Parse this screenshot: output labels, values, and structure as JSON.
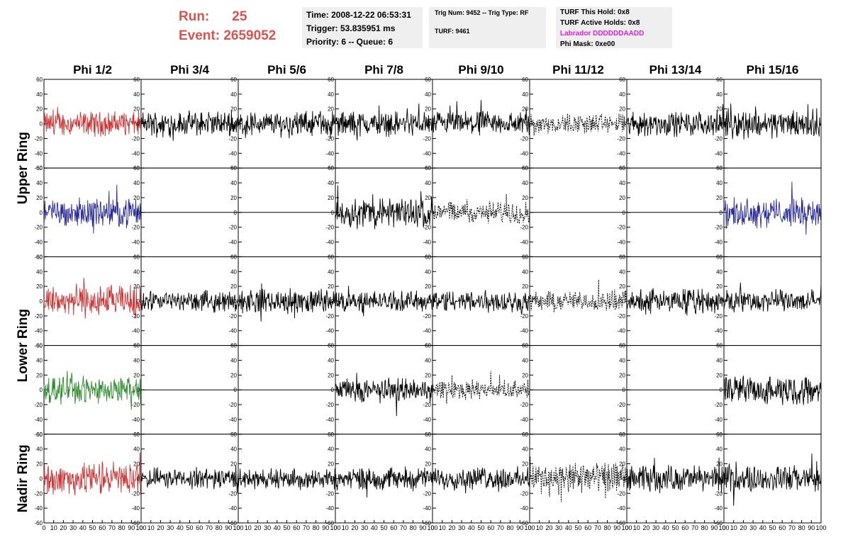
{
  "header": {
    "run_label": "Run:",
    "run_value": "25",
    "event_label": "Event:",
    "event_value": "2659052",
    "time": "Time: 2008-12-22 06:53:31",
    "trigger": "Trigger: 53.835951 ms",
    "priority": "Priority: 6 -- Queue: 6",
    "trig_num": "Trig Num: 9452 -- Trig Type: RF",
    "turf": "TURF: 9461",
    "turf_this_hold": "TURF This Hold: 0x8",
    "turf_active_holds": "TURF Active Holds: 0x8",
    "labrador": "Labrador DDDDDDAADD",
    "phi_mask": "Phi Mask: 0xe00"
  },
  "colors": {
    "header_red": "#d9534f",
    "red": "#cc3333",
    "blue": "#2b2b99",
    "green": "#2e8b2e",
    "black": "#000000",
    "magenta": "#e020e0",
    "info_bg": "#efefef"
  },
  "chart_data": {
    "type": "line",
    "column_titles": [
      "Phi 1/2",
      "Phi 3/4",
      "Phi 5/6",
      "Phi 7/8",
      "Phi 9/10",
      "Phi 11/12",
      "Phi 13/14",
      "Phi 15/16"
    ],
    "row_labels": [
      "Upper Ring",
      "Lower Ring",
      "Nadir Ring"
    ],
    "xlim": [
      0,
      100
    ],
    "ylim": [
      -60,
      60
    ],
    "x_ticks": [
      0,
      10,
      20,
      30,
      40,
      50,
      60,
      70,
      80,
      90,
      100
    ],
    "y_ticks": [
      60,
      40,
      20,
      0,
      -20,
      -40,
      -60
    ],
    "rows": [
      [
        {
          "style": "solid",
          "color": "red",
          "amp": 12
        },
        {
          "style": "solid",
          "color": "black",
          "amp": 12
        },
        {
          "style": "solid",
          "color": "black",
          "amp": 12
        },
        {
          "style": "solid",
          "color": "black",
          "amp": 12
        },
        {
          "style": "solid",
          "color": "black",
          "amp": 12
        },
        {
          "style": "dashed",
          "color": "black",
          "amp": 10
        },
        {
          "style": "solid",
          "color": "black",
          "amp": 12
        },
        {
          "style": "solid",
          "color": "black",
          "amp": 14
        }
      ],
      [
        {
          "style": "solid",
          "color": "blue",
          "amp": 14
        },
        {
          "style": "flat",
          "color": "black",
          "amp": 0
        },
        {
          "style": "flat",
          "color": "black",
          "amp": 0
        },
        {
          "style": "solid",
          "color": "black",
          "amp": 15
        },
        {
          "style": "dashed",
          "color": "black",
          "amp": 11
        },
        {
          "style": "flat",
          "color": "black",
          "amp": 0
        },
        {
          "style": "flat",
          "color": "black",
          "amp": 0
        },
        {
          "style": "solid",
          "color": "blue",
          "amp": 14
        }
      ],
      [
        {
          "style": "solid",
          "color": "red",
          "amp": 16
        },
        {
          "style": "solid",
          "color": "black",
          "amp": 10
        },
        {
          "style": "solid",
          "color": "black",
          "amp": 12
        },
        {
          "style": "solid",
          "color": "black",
          "amp": 10
        },
        {
          "style": "solid",
          "color": "black",
          "amp": 11
        },
        {
          "style": "dashed",
          "color": "black",
          "amp": 10
        },
        {
          "style": "solid",
          "color": "black",
          "amp": 12
        },
        {
          "style": "solid",
          "color": "black",
          "amp": 11
        }
      ],
      [
        {
          "style": "solid",
          "color": "green",
          "amp": 13
        },
        {
          "style": "flat",
          "color": "black",
          "amp": 0
        },
        {
          "style": "flat",
          "color": "black",
          "amp": 0
        },
        {
          "style": "solid",
          "color": "black",
          "amp": 12
        },
        {
          "style": "dashed",
          "color": "black",
          "amp": 9
        },
        {
          "style": "flat",
          "color": "black",
          "amp": 0
        },
        {
          "style": "flat",
          "color": "black",
          "amp": 0
        },
        {
          "style": "solid",
          "color": "black",
          "amp": 14
        }
      ],
      [
        {
          "style": "solid",
          "color": "red",
          "amp": 16
        },
        {
          "style": "solid",
          "color": "black",
          "amp": 10
        },
        {
          "style": "solid",
          "color": "black",
          "amp": 10
        },
        {
          "style": "solid",
          "color": "black",
          "amp": 11
        },
        {
          "style": "solid",
          "color": "black",
          "amp": 11
        },
        {
          "style": "dashed",
          "color": "black",
          "amp": 16
        },
        {
          "style": "solid",
          "color": "black",
          "amp": 13
        },
        {
          "style": "solid",
          "color": "black",
          "amp": 13
        }
      ]
    ]
  }
}
